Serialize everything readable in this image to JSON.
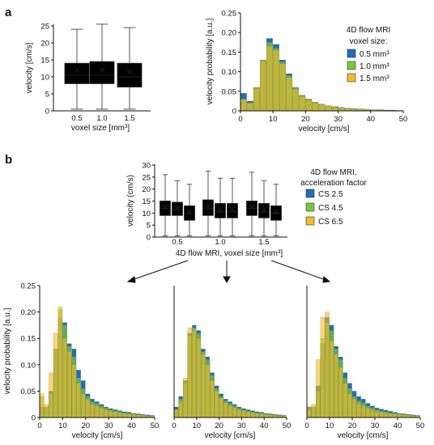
{
  "colors": {
    "blue": "#1f6fb5",
    "green": "#7cc540",
    "yellow": "#f6bb2a",
    "overlap": "#a9b32c",
    "deep_overlap": "#5f9a3a",
    "axis": "#111111",
    "whisker": "#555555"
  },
  "panel_a": {
    "label": "a",
    "box": {
      "xlabel": "voxel size [mm³]",
      "ylabel": "velocity [cm/s]",
      "yticks": [
        "0",
        "5",
        "10",
        "15",
        "20",
        "25"
      ],
      "xticks": [
        "0.5",
        "1.0",
        "1.5"
      ]
    },
    "hist": {
      "ylabel": "velocity probability [a.u.]",
      "xlabel": "velocity [cm/s]",
      "yticks": [
        "0",
        "0.05",
        "0.10",
        "0.15",
        "0.20",
        "0.25"
      ],
      "xticks": [
        "0",
        "10",
        "20",
        "30",
        "40",
        "50"
      ],
      "legend_title_1": "4D flow MRI",
      "legend_title_2": "voxel size:",
      "legend_items": [
        "0.5 mm³",
        "1.0 mm³",
        "1.5 mm³"
      ]
    }
  },
  "panel_b": {
    "label": "b",
    "box": {
      "xlabel": "4D flow MRI, voxel size [mm³]",
      "ylabel": "velocity (cm/s)",
      "yticks": [
        "0",
        "5",
        "10",
        "15",
        "20",
        "25",
        "30"
      ],
      "xticks": [
        "0.5",
        "1.0",
        "1.5"
      ],
      "legend_title_1": "4D flow MRI,",
      "legend_title_2": "acceleration factor",
      "legend_items": [
        "CS 2.5",
        "CS 4.5",
        "CS 6.5"
      ]
    },
    "hist": {
      "ylabel": "velocity probability [a.u.]",
      "xlabel": "velocity [cm/s]",
      "yticks": [
        "0",
        "0.05",
        "0.10",
        "0.15",
        "0.20",
        "0.25"
      ],
      "xticks": [
        "0",
        "10",
        "20",
        "30",
        "40",
        "50"
      ]
    }
  },
  "chart_data": [
    {
      "type": "box",
      "categories": [
        "0.5",
        "1.0",
        "1.5"
      ],
      "ylim": [
        0,
        25
      ],
      "series": [
        {
          "color": "blue",
          "whisker_low": 0.5,
          "q1": 8,
          "median": 10.5,
          "q3": 14,
          "whisker_high": 24,
          "mean": 12
        },
        {
          "color": "green",
          "whisker_low": 0.5,
          "q1": 8,
          "median": 10.5,
          "q3": 14.5,
          "whisker_high": 25.5,
          "mean": 12
        },
        {
          "color": "yellow",
          "whisker_low": 0.5,
          "q1": 7,
          "median": 10,
          "q3": 14,
          "whisker_high": 24.5,
          "mean": 11.5
        }
      ]
    },
    {
      "type": "bar",
      "xlim": [
        0,
        50
      ],
      "ylim": [
        0,
        0.25
      ],
      "bin_width": 2,
      "bins_start": [
        0,
        2,
        4,
        6,
        8,
        10,
        12,
        14,
        16,
        18,
        20,
        22,
        24,
        26,
        28,
        30,
        32,
        34,
        36,
        38,
        40,
        42,
        44,
        46,
        48
      ],
      "series": [
        {
          "color": "blue",
          "values": [
            0.045,
            0.025,
            0.06,
            0.13,
            0.185,
            0.17,
            0.13,
            0.095,
            0.06,
            0.04,
            0.03,
            0.022,
            0.017,
            0.013,
            0.011,
            0.009,
            0.007,
            0.006,
            0.005,
            0.004,
            0.003,
            0.003,
            0.002,
            0.002,
            0.001
          ]
        },
        {
          "color": "green",
          "values": [
            0.03,
            0.02,
            0.055,
            0.125,
            0.175,
            0.16,
            0.125,
            0.09,
            0.06,
            0.04,
            0.03,
            0.022,
            0.017,
            0.013,
            0.01,
            0.008,
            0.007,
            0.006,
            0.005,
            0.004,
            0.003,
            0.002,
            0.002,
            0.001,
            0.001
          ]
        },
        {
          "color": "yellow",
          "values": [
            0.03,
            0.02,
            0.06,
            0.13,
            0.165,
            0.155,
            0.12,
            0.085,
            0.055,
            0.037,
            0.027,
            0.02,
            0.016,
            0.012,
            0.009,
            0.008,
            0.006,
            0.005,
            0.004,
            0.003,
            0.003,
            0.002,
            0.001,
            0.001,
            0.001
          ]
        }
      ]
    },
    {
      "type": "box",
      "categories": [
        "0.5",
        "1.0",
        "1.5"
      ],
      "ylim": [
        0,
        30
      ],
      "series": [
        {
          "group": "0.5",
          "color": "blue",
          "whisker_low": 0.5,
          "q1": 9,
          "median": 12,
          "q3": 15,
          "whisker_high": 26,
          "mean": 12.5
        },
        {
          "group": "0.5",
          "color": "green",
          "whisker_low": 0.5,
          "q1": 9,
          "median": 11.5,
          "q3": 14.5,
          "whisker_high": 23.5,
          "mean": 12
        },
        {
          "group": "0.5",
          "color": "yellow",
          "whisker_low": 0.5,
          "q1": 7,
          "median": 10,
          "q3": 13,
          "whisker_high": 22,
          "mean": 10.5
        },
        {
          "group": "1.0",
          "color": "blue",
          "whisker_low": 0.5,
          "q1": 9,
          "median": 12,
          "q3": 15.5,
          "whisker_high": 27.5,
          "mean": 13
        },
        {
          "group": "1.0",
          "color": "green",
          "whisker_low": 0.5,
          "q1": 8,
          "median": 10.5,
          "q3": 14,
          "whisker_high": 24.5,
          "mean": 11.5
        },
        {
          "group": "1.0",
          "color": "yellow",
          "whisker_low": 0.5,
          "q1": 8,
          "median": 10.5,
          "q3": 14,
          "whisker_high": 24.5,
          "mean": 11.5
        },
        {
          "group": "1.5",
          "color": "blue",
          "whisker_low": 0.5,
          "q1": 9,
          "median": 12,
          "q3": 15,
          "whisker_high": 27,
          "mean": 12.5
        },
        {
          "group": "1.5",
          "color": "green",
          "whisker_low": 0.5,
          "q1": 8,
          "median": 10.5,
          "q3": 14,
          "whisker_high": 23.5,
          "mean": 11.5
        },
        {
          "group": "1.5",
          "color": "yellow",
          "whisker_low": 0.5,
          "q1": 7,
          "median": 10,
          "q3": 13,
          "whisker_high": 22,
          "mean": 10.5
        }
      ]
    },
    {
      "type": "bar",
      "xlim": [
        0,
        50
      ],
      "ylim": [
        0,
        0.25
      ],
      "bin_width": 2,
      "series": [
        {
          "color": "blue",
          "values": [
            0.02,
            0.02,
            0.05,
            0.13,
            0.19,
            0.18,
            0.14,
            0.13,
            0.09,
            0.07,
            0.045,
            0.035,
            0.03,
            0.025,
            0.02,
            0.017,
            0.015,
            0.013,
            0.011,
            0.01,
            0.008,
            0.007,
            0.006,
            0.005,
            0.004
          ]
        },
        {
          "color": "green",
          "values": [
            0.04,
            0.02,
            0.045,
            0.13,
            0.205,
            0.175,
            0.135,
            0.115,
            0.075,
            0.055,
            0.04,
            0.03,
            0.027,
            0.022,
            0.018,
            0.015,
            0.013,
            0.011,
            0.009,
            0.008,
            0.007,
            0.006,
            0.005,
            0.004,
            0.003
          ]
        },
        {
          "color": "yellow",
          "values": [
            0.045,
            0.025,
            0.085,
            0.16,
            0.21,
            0.15,
            0.125,
            0.1,
            0.065,
            0.045,
            0.035,
            0.025,
            0.022,
            0.018,
            0.015,
            0.012,
            0.011,
            0.009,
            0.008,
            0.007,
            0.006,
            0.005,
            0.004,
            0.003,
            0.003
          ]
        }
      ]
    },
    {
      "type": "bar",
      "xlim": [
        0,
        50
      ],
      "ylim": [
        0,
        0.25
      ],
      "bin_width": 2,
      "series": [
        {
          "color": "blue",
          "values": [
            0.02,
            0.04,
            0.07,
            0.16,
            0.175,
            0.165,
            0.13,
            0.115,
            0.085,
            0.06,
            0.045,
            0.035,
            0.03,
            0.025,
            0.02,
            0.017,
            0.015,
            0.013,
            0.011,
            0.01,
            0.008,
            0.007,
            0.006,
            0.005,
            0.004
          ]
        },
        {
          "color": "green",
          "values": [
            0.015,
            0.035,
            0.065,
            0.155,
            0.165,
            0.16,
            0.125,
            0.11,
            0.08,
            0.055,
            0.04,
            0.032,
            0.027,
            0.022,
            0.018,
            0.015,
            0.013,
            0.011,
            0.009,
            0.008,
            0.007,
            0.006,
            0.005,
            0.004,
            0.003
          ]
        },
        {
          "color": "yellow",
          "values": [
            0.015,
            0.03,
            0.075,
            0.17,
            0.17,
            0.15,
            0.12,
            0.1,
            0.07,
            0.05,
            0.037,
            0.028,
            0.023,
            0.019,
            0.015,
            0.013,
            0.011,
            0.009,
            0.008,
            0.007,
            0.006,
            0.005,
            0.004,
            0.003,
            0.003
          ]
        }
      ]
    },
    {
      "type": "bar",
      "xlim": [
        0,
        50
      ],
      "ylim": [
        0,
        0.25
      ],
      "bin_width": 2,
      "series": [
        {
          "color": "blue",
          "values": [
            0.02,
            0.02,
            0.06,
            0.14,
            0.19,
            0.175,
            0.135,
            0.115,
            0.085,
            0.065,
            0.05,
            0.04,
            0.035,
            0.027,
            0.022,
            0.018,
            0.016,
            0.014,
            0.012,
            0.01,
            0.008,
            0.007,
            0.006,
            0.005,
            0.004
          ]
        },
        {
          "color": "green",
          "values": [
            0.015,
            0.02,
            0.05,
            0.15,
            0.18,
            0.165,
            0.13,
            0.11,
            0.075,
            0.055,
            0.04,
            0.032,
            0.028,
            0.022,
            0.018,
            0.015,
            0.013,
            0.011,
            0.009,
            0.008,
            0.007,
            0.006,
            0.005,
            0.004,
            0.003
          ]
        },
        {
          "color": "yellow",
          "values": [
            0.02,
            0.025,
            0.11,
            0.19,
            0.2,
            0.145,
            0.12,
            0.095,
            0.065,
            0.045,
            0.035,
            0.027,
            0.022,
            0.018,
            0.015,
            0.012,
            0.011,
            0.009,
            0.008,
            0.007,
            0.006,
            0.005,
            0.004,
            0.003,
            0.003
          ]
        }
      ]
    }
  ]
}
